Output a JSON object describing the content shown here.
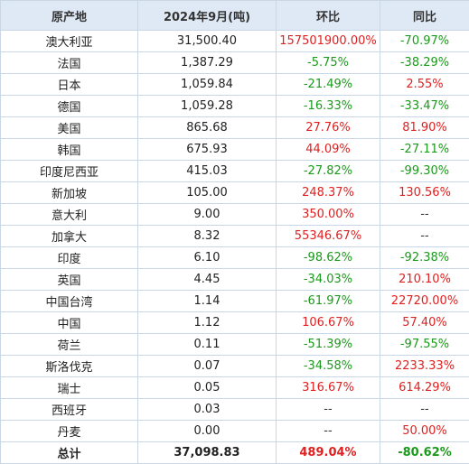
{
  "table": {
    "header": [
      "原产地",
      "2024年9月(吨)",
      "环比",
      "同比"
    ],
    "rows": [
      [
        "澳大利亚",
        "31,500.40",
        "157501900.00%",
        "-70.97%"
      ],
      [
        "法国",
        "1,387.29",
        "-5.75%",
        "-38.29%"
      ],
      [
        "日本",
        "1,059.84",
        "-21.49%",
        "2.55%"
      ],
      [
        "德国",
        "1,059.28",
        "-16.33%",
        "-33.47%"
      ],
      [
        "美国",
        "865.68",
        "27.76%",
        "81.90%"
      ],
      [
        "韩国",
        "675.93",
        "44.09%",
        "-27.11%"
      ],
      [
        "印度尼西亚",
        "415.03",
        "-27.82%",
        "-99.30%"
      ],
      [
        "新加坡",
        "105.00",
        "248.37%",
        "130.56%"
      ],
      [
        "意大利",
        "9.00",
        "350.00%",
        "--"
      ],
      [
        "加拿大",
        "8.32",
        "55346.67%",
        "--"
      ],
      [
        "印度",
        "6.10",
        "-98.62%",
        "-92.38%"
      ],
      [
        "英国",
        "4.45",
        "-34.03%",
        "210.10%"
      ],
      [
        "中国台湾",
        "1.14",
        "-61.97%",
        "22720.00%"
      ],
      [
        "中国",
        "1.12",
        "106.67%",
        "57.40%"
      ],
      [
        "荷兰",
        "0.11",
        "-51.39%",
        "-97.55%"
      ],
      [
        "斯洛伐克",
        "0.07",
        "-34.58%",
        "2233.33%"
      ],
      [
        "瑞士",
        "0.05",
        "316.67%",
        "614.29%"
      ],
      [
        "西班牙",
        "0.03",
        "--",
        "--"
      ],
      [
        "丹麦",
        "0.00",
        "--",
        "50.00%"
      ]
    ],
    "total": [
      "总计",
      "37,098.83",
      "489.04%",
      "-80.62%"
    ]
  }
}
